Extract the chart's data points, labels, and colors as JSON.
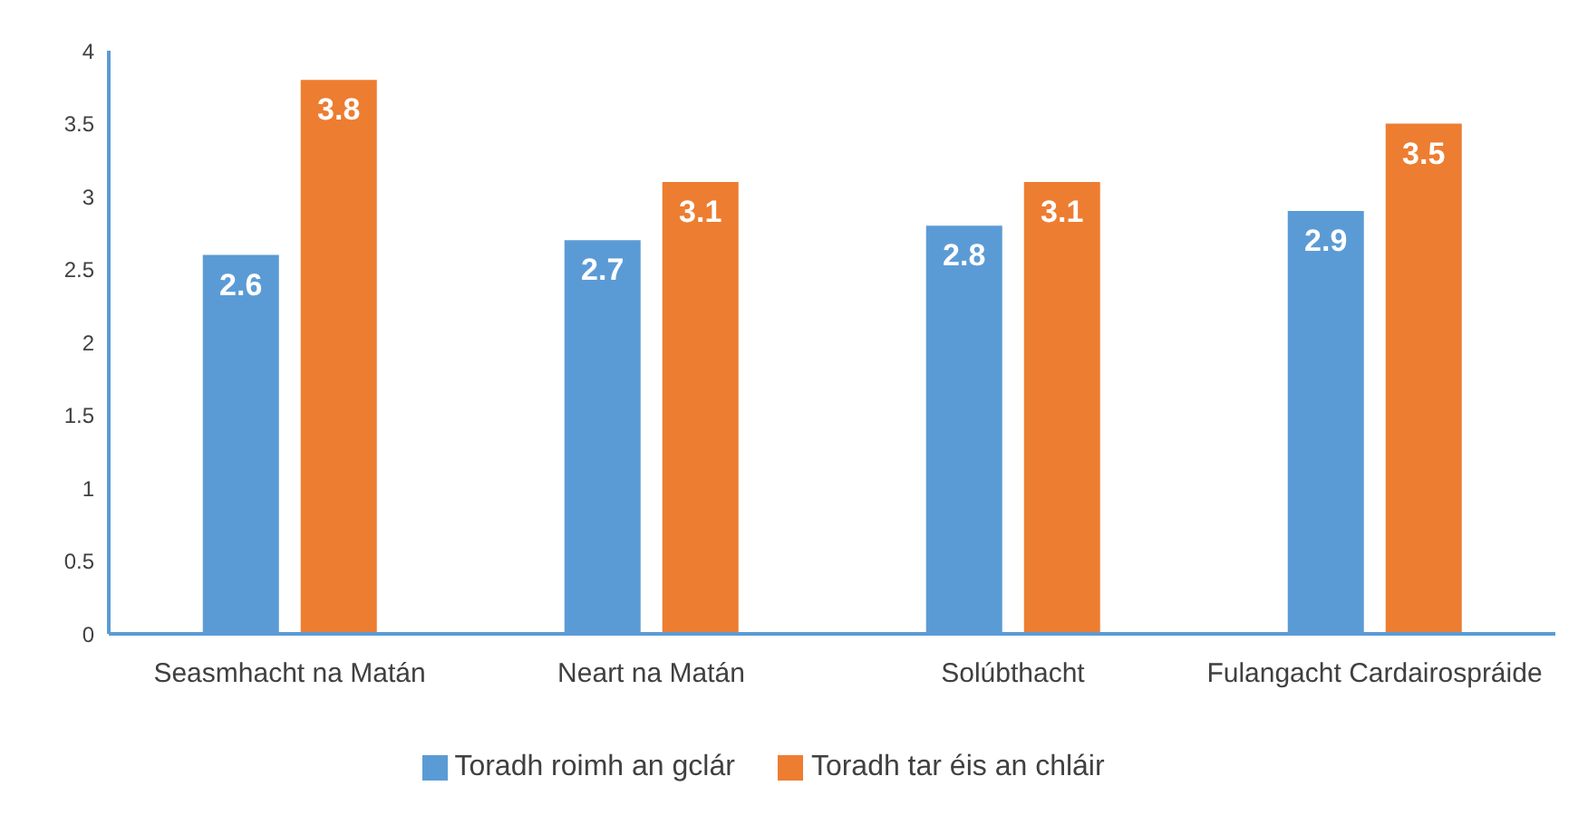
{
  "chart_data": {
    "type": "bar",
    "categories": [
      "Seasmhacht na Matán",
      "Neart na Matán",
      "Solúbthacht",
      "Fulangacht Cardairospráide"
    ],
    "series": [
      {
        "name": "Toradh roimh an gclár",
        "color": "#5b9bd5",
        "values": [
          2.6,
          2.7,
          2.8,
          2.9
        ]
      },
      {
        "name": "Toradh tar éis an chláir",
        "color": "#ed7d31",
        "values": [
          3.8,
          3.1,
          3.1,
          3.5
        ]
      }
    ],
    "ylim": [
      0,
      4
    ],
    "yticks": [
      0,
      0.5,
      1,
      1.5,
      2,
      2.5,
      3,
      3.5,
      4
    ],
    "grid": false,
    "legend": "bottom",
    "data_labels": true
  }
}
